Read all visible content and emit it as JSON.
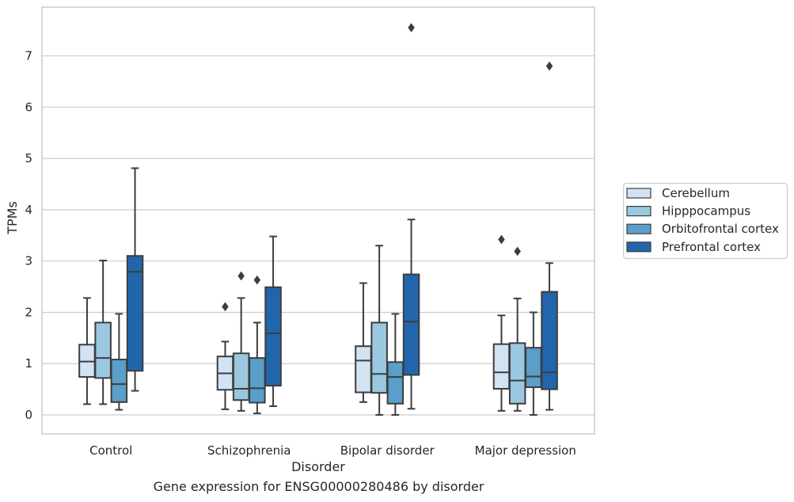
{
  "caption": "Gene expression for ENSG00000280486 by disorder",
  "chart_data": {
    "type": "box",
    "xlabel": "Disorder",
    "ylabel": "TPMs",
    "ylim": [
      -0.37,
      7.95
    ],
    "yticks": [
      0,
      1,
      2,
      3,
      4,
      5,
      6,
      7
    ],
    "grid": true,
    "legend_position": "right",
    "categories": [
      "Control",
      "Schizophrenia",
      "Bipolar disorder",
      "Major depression"
    ],
    "series": [
      {
        "name": "Cerebellum",
        "color": "#d2e3f3",
        "boxes": [
          {
            "whisker_low": 0.21,
            "q1": 0.74,
            "median": 1.04,
            "q3": 1.37,
            "whisker_high": 2.28,
            "outliers": []
          },
          {
            "whisker_low": 0.11,
            "q1": 0.49,
            "median": 0.81,
            "q3": 1.14,
            "whisker_high": 1.43,
            "outliers": [
              2.11
            ]
          },
          {
            "whisker_low": 0.25,
            "q1": 0.44,
            "median": 1.06,
            "q3": 1.34,
            "whisker_high": 2.57,
            "outliers": []
          },
          {
            "whisker_low": 0.08,
            "q1": 0.51,
            "median": 0.83,
            "q3": 1.38,
            "whisker_high": 1.94,
            "outliers": [
              3.42
            ]
          }
        ]
      },
      {
        "name": "Hipppocampus",
        "color": "#9ac8e0",
        "boxes": [
          {
            "whisker_low": 0.21,
            "q1": 0.72,
            "median": 1.11,
            "q3": 1.8,
            "whisker_high": 3.01,
            "outliers": []
          },
          {
            "whisker_low": 0.08,
            "q1": 0.29,
            "median": 0.51,
            "q3": 1.2,
            "whisker_high": 2.28,
            "outliers": [
              2.71
            ]
          },
          {
            "whisker_low": 0.0,
            "q1": 0.43,
            "median": 0.8,
            "q3": 1.8,
            "whisker_high": 3.3,
            "outliers": []
          },
          {
            "whisker_low": 0.08,
            "q1": 0.22,
            "median": 0.67,
            "q3": 1.4,
            "whisker_high": 2.27,
            "outliers": [
              3.19
            ]
          }
        ]
      },
      {
        "name": "Orbitofrontal cortex",
        "color": "#5a9ec9",
        "boxes": [
          {
            "whisker_low": 0.1,
            "q1": 0.25,
            "median": 0.6,
            "q3": 1.08,
            "whisker_high": 1.97,
            "outliers": []
          },
          {
            "whisker_low": 0.03,
            "q1": 0.24,
            "median": 0.52,
            "q3": 1.11,
            "whisker_high": 1.8,
            "outliers": [
              2.63
            ]
          },
          {
            "whisker_low": 0.0,
            "q1": 0.22,
            "median": 0.74,
            "q3": 1.03,
            "whisker_high": 1.97,
            "outliers": []
          },
          {
            "whisker_low": 0.0,
            "q1": 0.54,
            "median": 0.75,
            "q3": 1.31,
            "whisker_high": 2.0,
            "outliers": []
          }
        ]
      },
      {
        "name": "Prefrontal cortex",
        "color": "#2166ac",
        "boxes": [
          {
            "whisker_low": 0.47,
            "q1": 0.86,
            "median": 2.79,
            "q3": 3.1,
            "whisker_high": 4.81,
            "outliers": []
          },
          {
            "whisker_low": 0.17,
            "q1": 0.57,
            "median": 1.59,
            "q3": 2.49,
            "whisker_high": 3.48,
            "outliers": []
          },
          {
            "whisker_low": 0.12,
            "q1": 0.78,
            "median": 1.82,
            "q3": 2.74,
            "whisker_high": 3.81,
            "outliers": [
              7.55
            ]
          },
          {
            "whisker_low": 0.1,
            "q1": 0.5,
            "median": 0.83,
            "q3": 2.4,
            "whisker_high": 2.96,
            "outliers": [
              6.8
            ]
          }
        ]
      }
    ]
  }
}
